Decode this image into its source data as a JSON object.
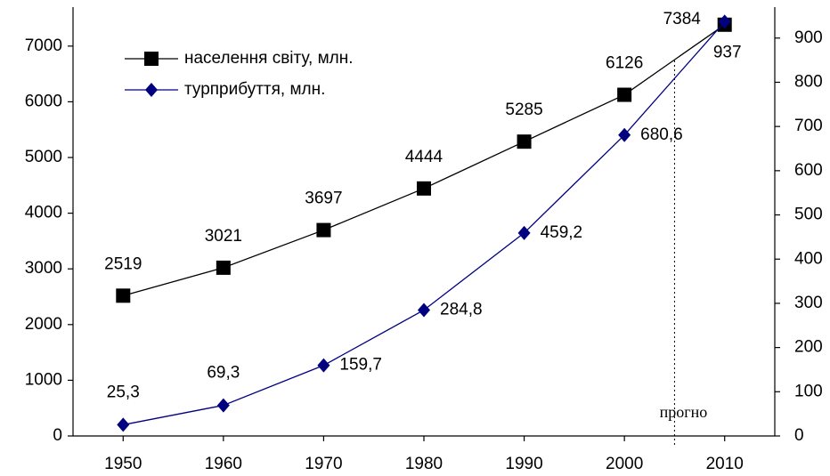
{
  "chart_data": {
    "type": "line",
    "x": [
      1950,
      1960,
      1970,
      1980,
      1990,
      2000,
      2010
    ],
    "xlim": [
      1945,
      2015
    ],
    "xticks": [
      1950,
      1960,
      1970,
      1980,
      1990,
      2000,
      2010
    ],
    "series": [
      {
        "name": "населення світу, млн.",
        "color": "#000000",
        "marker": "square",
        "axis": "y",
        "values": [
          2519,
          3021,
          3697,
          4444,
          5285,
          6126,
          7384
        ]
      },
      {
        "name": "турприбуття, млн.",
        "color": "#000080",
        "marker": "diamond",
        "axis": "y2",
        "values": [
          25.3,
          69.3,
          159.7,
          284.8,
          459.2,
          680.6,
          937
        ],
        "value_labels": [
          "25,3",
          "69,3",
          "159,7",
          "284,8",
          "459,2",
          "680,6",
          "937"
        ]
      }
    ],
    "ylim": [
      0,
      7700
    ],
    "yticks": [
      0,
      1000,
      2000,
      3000,
      4000,
      5000,
      6000,
      7000
    ],
    "y2lim": [
      0,
      970
    ],
    "y2ticks": [
      0,
      100,
      200,
      300,
      400,
      500,
      600,
      700,
      800,
      900
    ],
    "legend": "upper left",
    "annotation": {
      "x": 2005,
      "text": "прогно"
    }
  }
}
